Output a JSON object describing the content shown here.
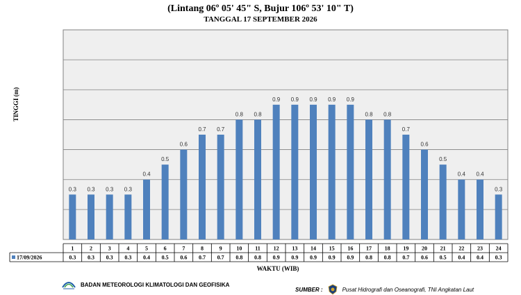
{
  "header": {
    "subtitle": "(Lintang 06º 05' 45\" S, Bujur 106º 53' 10\" T)",
    "date_line": "TANGGAL 17 SEPTEMBER 2026"
  },
  "chart_data": {
    "type": "bar",
    "categories": [
      "1",
      "2",
      "3",
      "4",
      "5",
      "6",
      "7",
      "8",
      "9",
      "10",
      "11",
      "12",
      "13",
      "14",
      "15",
      "16",
      "17",
      "18",
      "19",
      "20",
      "21",
      "22",
      "23",
      "24"
    ],
    "series": [
      {
        "name": "17/09/2026",
        "values": [
          0.3,
          0.3,
          0.3,
          0.3,
          0.4,
          0.5,
          0.6,
          0.7,
          0.7,
          0.8,
          0.8,
          0.9,
          0.9,
          0.9,
          0.9,
          0.9,
          0.8,
          0.8,
          0.7,
          0.6,
          0.5,
          0.4,
          0.4,
          0.3
        ],
        "color": "#4f81bd"
      }
    ],
    "xlabel": "WAKTU (WIB)",
    "ylabel": "TINGGI (m)",
    "ylim": [
      0,
      1.4
    ],
    "grid": true,
    "legend": "data-table-left",
    "plot_background": "#efefef"
  },
  "footer": {
    "agency_name": "BADAN METEOROLOGI KLIMATOLOGI DAN GEOFISIKA",
    "source_label": "SUMBER :",
    "source_name": "Pusat Hidrografi dan Oseanografi, TNI Angkatan Laut"
  }
}
